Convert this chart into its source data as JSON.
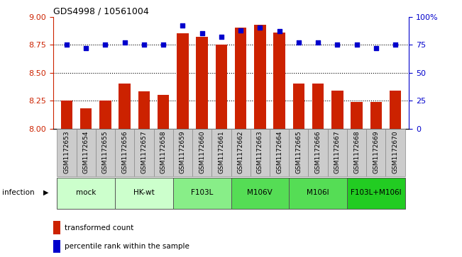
{
  "title": "GDS4998 / 10561004",
  "samples": [
    "GSM1172653",
    "GSM1172654",
    "GSM1172655",
    "GSM1172656",
    "GSM1172657",
    "GSM1172658",
    "GSM1172659",
    "GSM1172660",
    "GSM1172661",
    "GSM1172662",
    "GSM1172663",
    "GSM1172664",
    "GSM1172665",
    "GSM1172666",
    "GSM1172667",
    "GSM1172668",
    "GSM1172669",
    "GSM1172670"
  ],
  "bar_values": [
    8.25,
    8.18,
    8.25,
    8.4,
    8.33,
    8.3,
    8.85,
    8.82,
    8.75,
    8.9,
    8.93,
    8.86,
    8.4,
    8.4,
    8.34,
    8.24,
    8.24,
    8.34
  ],
  "percentile_values": [
    75,
    72,
    75,
    77,
    75,
    75,
    92,
    85,
    82,
    88,
    90,
    87,
    77,
    77,
    75,
    75,
    72,
    75
  ],
  "ylim_left": [
    8.0,
    9.0
  ],
  "ylim_right": [
    0,
    100
  ],
  "yticks_left": [
    8.0,
    8.25,
    8.5,
    8.75,
    9.0
  ],
  "yticks_right": [
    0,
    25,
    50,
    75,
    100
  ],
  "bar_color": "#cc2200",
  "dot_color": "#0000cc",
  "groups": [
    {
      "label": "mock",
      "start": 0,
      "end": 2,
      "color": "#ccffcc"
    },
    {
      "label": "HK-wt",
      "start": 3,
      "end": 5,
      "color": "#ccffcc"
    },
    {
      "label": "F103L",
      "start": 6,
      "end": 8,
      "color": "#88ee88"
    },
    {
      "label": "M106V",
      "start": 9,
      "end": 11,
      "color": "#55dd55"
    },
    {
      "label": "M106I",
      "start": 12,
      "end": 14,
      "color": "#55dd55"
    },
    {
      "label": "F103L+M106I",
      "start": 15,
      "end": 17,
      "color": "#22cc22"
    }
  ],
  "infection_label": "infection",
  "legend_items": [
    {
      "color": "#cc2200",
      "label": "transformed count"
    },
    {
      "color": "#0000cc",
      "label": "percentile rank within the sample"
    }
  ],
  "grid_lines": [
    8.25,
    8.5,
    8.75
  ],
  "sample_cell_color": "#cccccc",
  "axis_left_color": "#cc2200",
  "axis_right_color": "#0000cc"
}
